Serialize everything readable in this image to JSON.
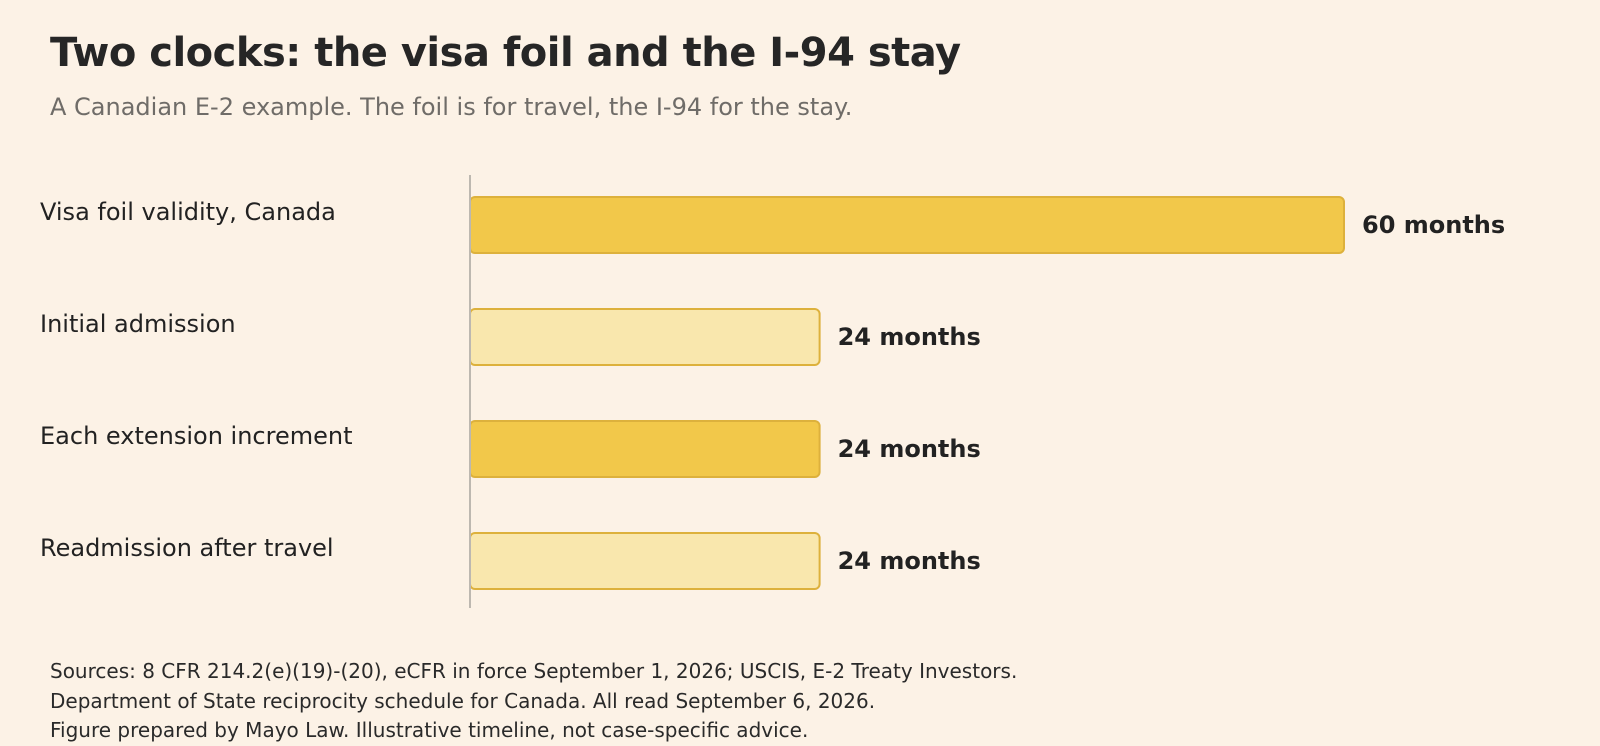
{
  "title": "Two clocks: the visa foil and the I-94 stay",
  "subtitle": "A Canadian E-2 example. The foil is for travel, the I-94 for the stay.",
  "chart_data": {
    "type": "bar",
    "orientation": "horizontal",
    "categories": [
      "Visa foil validity, Canada",
      "Initial admission",
      "Each extension increment",
      "Readmission after travel"
    ],
    "values": [
      60,
      24,
      24,
      24
    ],
    "value_labels": [
      "60 months",
      "24 months",
      "24 months",
      "24 months"
    ],
    "bar_colors": [
      "#f2c84a",
      "#f9e7ad",
      "#f2c84a",
      "#f9e7ad"
    ],
    "bar_stroke": "#ddb13c",
    "grid": false
  },
  "sources": [
    "Sources: 8 CFR 214.2(e)(19)-(20), eCFR in force September 1, 2026; USCIS, E-2 Treaty Investors.",
    "Department of State reciprocity schedule for Canada. All read September 6, 2026.",
    "Figure prepared by Mayo Law. Illustrative timeline, not case-specific advice."
  ]
}
